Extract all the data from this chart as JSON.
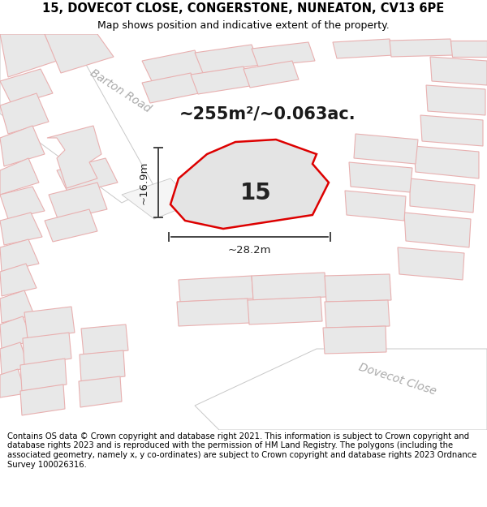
{
  "title_line1": "15, DOVECOT CLOSE, CONGERSTONE, NUNEATON, CV13 6PE",
  "title_line2": "Map shows position and indicative extent of the property.",
  "footer_text": "Contains OS data © Crown copyright and database right 2021. This information is subject to Crown copyright and database rights 2023 and is reproduced with the permission of HM Land Registry. The polygons (including the associated geometry, namely x, y co-ordinates) are subject to Crown copyright and database rights 2023 Ordnance Survey 100026316.",
  "area_label": "~255m²/~0.063ac.",
  "width_label": "~28.2m",
  "height_label": "~16.9m",
  "plot_number": "15",
  "map_bg": "#f7f7f7",
  "building_face": "#e8e8e8",
  "building_edge": "#e8b0b0",
  "road_face": "#ffffff",
  "road_edge": "#cccccc",
  "plot_fill": "#e4e4e4",
  "plot_edge_color": "#dd0000",
  "road_label_color": "#aaaaaa",
  "dim_line_color": "#444444",
  "title_fontsize": 10.5,
  "subtitle_fontsize": 9,
  "footer_fontsize": 7.2,
  "area_fontsize": 15,
  "plot_num_fontsize": 20,
  "dim_fontsize": 9.5,
  "road_label_fontsize": 10
}
